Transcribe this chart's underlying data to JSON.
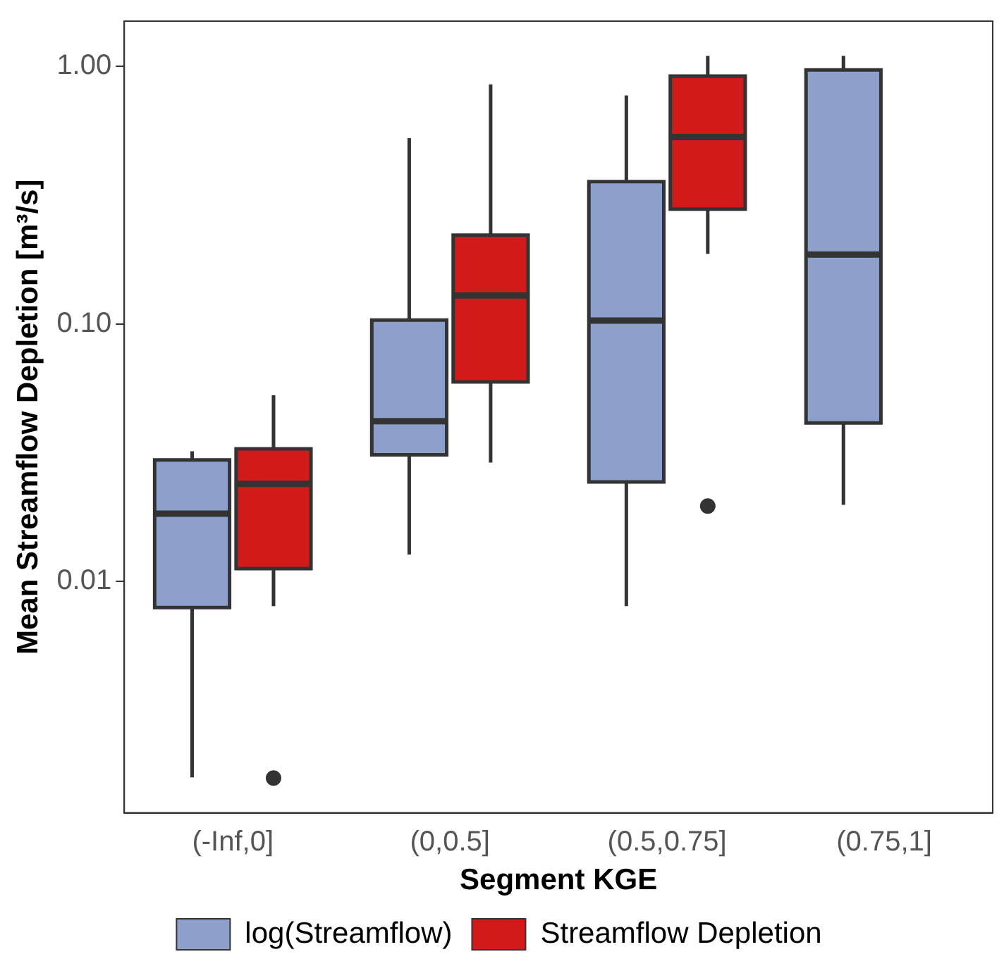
{
  "chart_data": {
    "type": "box",
    "xlabel": "Segment KGE",
    "ylabel": "Mean Streamflow Depletion [m³/s]",
    "categories": [
      "(-Inf,0]",
      "(0,0.5]",
      "(0.5,0.75]",
      "(0.75,1]"
    ],
    "log": true,
    "ylim": [
      0.00126,
      1.5
    ],
    "yticks": [
      {
        "value": 0.01,
        "label": "0.01"
      },
      {
        "value": 0.1,
        "label": "0.10"
      },
      {
        "value": 1,
        "label": "1.00"
      }
    ],
    "grid": false,
    "legend": "bottom",
    "series": [
      {
        "name": "log(Streamflow)",
        "color": "#8da0cb",
        "boxes": [
          {
            "low": 0.00173,
            "q1": 0.0079,
            "median": 0.0183,
            "q3": 0.0296,
            "high": 0.032
          },
          {
            "low": 0.0127,
            "q1": 0.031,
            "median": 0.0419,
            "q3": 0.1035,
            "high": 0.527
          },
          {
            "low": 0.008,
            "q1": 0.0243,
            "median": 0.103,
            "q3": 0.357,
            "high": 0.772
          },
          {
            "low": 0.0198,
            "q1": 0.0412,
            "median": 0.186,
            "q3": 0.97,
            "high": 1.1
          }
        ]
      },
      {
        "name": "Streamflow Depletion",
        "color": "#d31a1a",
        "boxes": [
          {
            "low": 0.008,
            "q1": 0.0112,
            "median": 0.0239,
            "q3": 0.0327,
            "high": 0.0528,
            "outliers": [
              0.00172
            ]
          },
          {
            "low": 0.0289,
            "q1": 0.0595,
            "median": 0.129,
            "q3": 0.221,
            "high": 0.852
          },
          {
            "low": 0.187,
            "q1": 0.279,
            "median": 0.532,
            "q3": 0.917,
            "high": 1.1,
            "outliers": [
              0.0196
            ]
          },
          null
        ]
      }
    ]
  }
}
